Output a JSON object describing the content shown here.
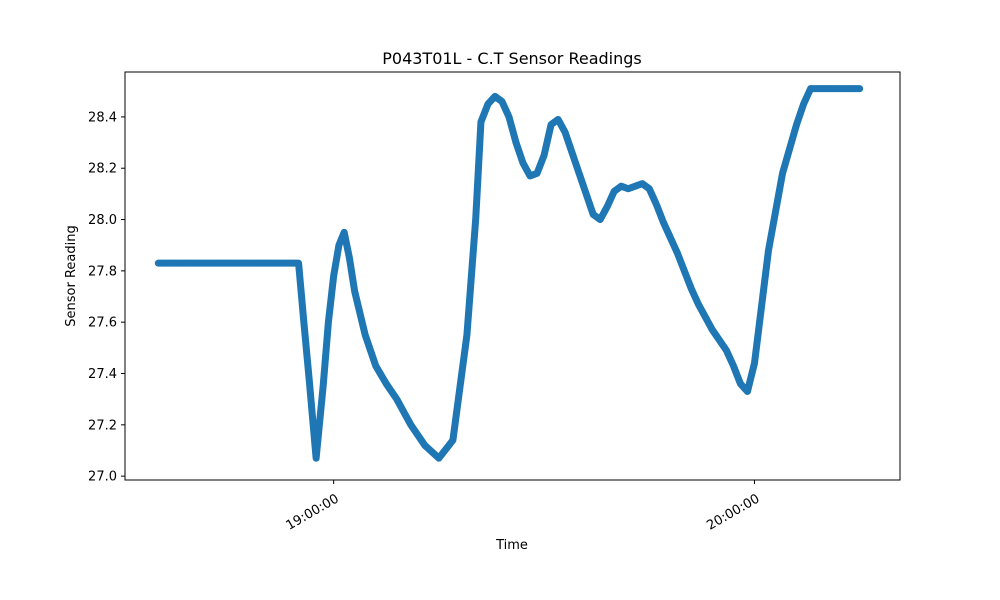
{
  "chart_data": {
    "type": "scatter",
    "title": "P043T01L - C.T Sensor Readings",
    "xlabel": "Time",
    "ylabel": "Sensor Reading",
    "x_tick_labels": [
      "19:00:00",
      "20:00:00"
    ],
    "x_ticks": [
      "19:00:00",
      "20:00:00"
    ],
    "xlim": [
      "18:30:15",
      "20:20:45"
    ],
    "ylim": [
      26.985,
      28.575
    ],
    "y_ticks": [
      27.0,
      27.2,
      27.4,
      27.6,
      27.8,
      28.0,
      28.2,
      28.4
    ],
    "y_tick_labels": [
      "27.0",
      "27.2",
      "27.4",
      "27.6",
      "27.8",
      "28.0",
      "28.2",
      "28.4"
    ],
    "grid": false,
    "legend": "none",
    "series": [
      {
        "color": "#1f77b4",
        "x": [
          "18:35:00",
          "18:40:00",
          "18:45:00",
          "18:50:00",
          "18:55:00",
          "18:55:45",
          "18:56:30",
          "18:57:30",
          "18:58:30",
          "18:59:15",
          "19:00:00",
          "19:00:45",
          "19:01:30",
          "19:02:15",
          "19:03:00",
          "19:04:30",
          "19:06:00",
          "19:07:30",
          "19:09:00",
          "19:11:00",
          "19:13:00",
          "19:15:00",
          "19:17:00",
          "19:19:00",
          "19:20:15",
          "19:21:00",
          "19:22:00",
          "19:23:00",
          "19:24:00",
          "19:25:00",
          "19:26:00",
          "19:27:00",
          "19:28:00",
          "19:29:00",
          "19:30:00",
          "19:31:00",
          "19:32:00",
          "19:33:00",
          "19:34:00",
          "19:35:00",
          "19:36:00",
          "19:37:00",
          "19:38:00",
          "19:39:00",
          "19:40:00",
          "19:41:00",
          "19:42:00",
          "19:43:00",
          "19:44:00",
          "19:45:00",
          "19:46:00",
          "19:47:00",
          "19:48:00",
          "19:49:00",
          "19:50:00",
          "19:51:00",
          "19:52:00",
          "19:53:00",
          "19:54:00",
          "19:55:00",
          "19:56:00",
          "19:57:00",
          "19:58:00",
          "19:59:00",
          "20:00:00",
          "20:02:00",
          "20:04:00",
          "20:06:00",
          "20:07:00",
          "20:08:00",
          "20:09:00",
          "20:10:00",
          "20:11:00",
          "20:12:00",
          "20:13:00",
          "20:14:00",
          "20:15:00"
        ],
        "y": [
          27.83,
          27.83,
          27.83,
          27.83,
          27.83,
          27.6,
          27.38,
          27.07,
          27.35,
          27.6,
          27.78,
          27.9,
          27.95,
          27.85,
          27.72,
          27.55,
          27.43,
          27.36,
          27.3,
          27.2,
          27.12,
          27.07,
          27.14,
          27.55,
          28.0,
          28.38,
          28.45,
          28.48,
          28.46,
          28.4,
          28.3,
          28.22,
          28.17,
          28.18,
          28.25,
          28.37,
          28.39,
          28.34,
          28.26,
          28.18,
          28.1,
          28.02,
          28.0,
          28.05,
          28.11,
          28.13,
          28.12,
          28.13,
          28.14,
          28.12,
          28.06,
          27.99,
          27.93,
          27.87,
          27.8,
          27.73,
          27.67,
          27.62,
          27.57,
          27.53,
          27.49,
          27.43,
          27.36,
          27.33,
          27.44,
          27.88,
          28.18,
          28.37,
          28.45,
          28.51,
          28.51,
          28.51,
          28.51,
          28.51,
          28.51,
          28.51,
          28.51
        ]
      }
    ]
  }
}
